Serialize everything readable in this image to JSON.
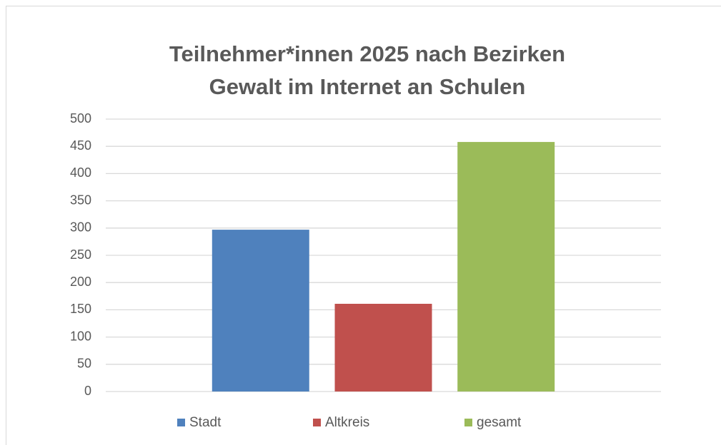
{
  "chart_data": {
    "type": "bar",
    "title": [
      "Teilnehmer*innen 2025 nach Bezirken",
      "Gewalt im Internet an Schulen"
    ],
    "categories": [
      null
    ],
    "series": [
      {
        "name": "Stadt",
        "color": "#4f81bd",
        "values": [
          297
        ]
      },
      {
        "name": "Altkreis",
        "color": "#c0504d",
        "values": [
          161
        ]
      },
      {
        "name": "gesamt",
        "color": "#9bbb59",
        "values": [
          458
        ]
      }
    ],
    "ylim": [
      0,
      500
    ],
    "yticks": [
      0,
      50,
      100,
      150,
      200,
      250,
      300,
      350,
      400,
      450,
      500
    ],
    "grid": true,
    "legend": "bottom"
  }
}
